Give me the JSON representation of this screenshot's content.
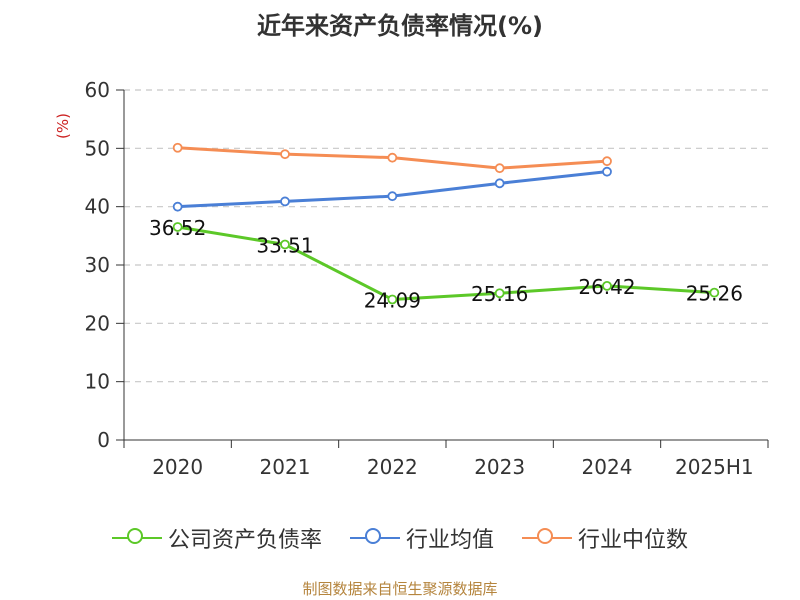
{
  "chart_data": {
    "type": "line",
    "title": "近年来资产负债率情况(%)",
    "ylabel": "(%)",
    "categories": [
      "2020",
      "2021",
      "2022",
      "2023",
      "2024",
      "2025H1"
    ],
    "ylim": [
      0,
      60
    ],
    "yticks": [
      0,
      10,
      20,
      30,
      40,
      50,
      60
    ],
    "grid": true,
    "legend_position": "bottom",
    "series": [
      {
        "name": "公司资产负债率",
        "color": "#5cc828",
        "values": [
          36.52,
          33.51,
          24.09,
          25.16,
          26.42,
          25.26
        ],
        "labels": [
          "36.52",
          "33.51",
          "24.09",
          "25.16",
          "26.42",
          "25.26"
        ]
      },
      {
        "name": "行业均值",
        "color": "#4a7fd6",
        "values": [
          40.0,
          40.9,
          41.8,
          44.0,
          46.0,
          null
        ]
      },
      {
        "name": "行业中位数",
        "color": "#f58d54",
        "values": [
          50.1,
          49.0,
          48.4,
          46.6,
          47.8,
          null
        ]
      }
    ]
  },
  "source": "制图数据来自恒生聚源数据库"
}
